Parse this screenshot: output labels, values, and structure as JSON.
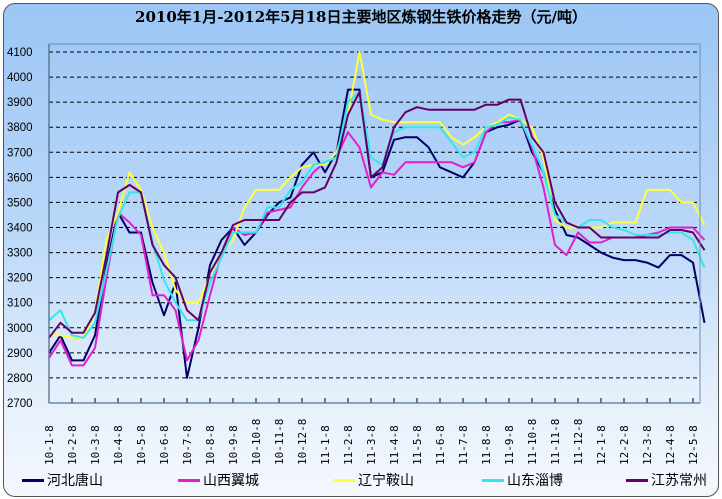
{
  "title": "2010年1月-2012年5月18日主要地区炼钢生铁价格走势（元/吨）",
  "chart_data": {
    "type": "line",
    "title": "2010年1月-2012年5月18日主要地区炼钢生铁价格走势（元/吨）",
    "xlabel": "",
    "ylabel": "",
    "ylim": [
      2700,
      4100
    ],
    "yticks": [
      2700,
      2800,
      2900,
      3000,
      3100,
      3200,
      3300,
      3400,
      3500,
      3600,
      3700,
      3800,
      3900,
      4000,
      4100
    ],
    "grid": true,
    "legend_position": "bottom",
    "categories": [
      "10-1-8",
      "10-2-8",
      "10-3-8",
      "10-4-8",
      "10-5-8",
      "10-6-8",
      "10-7-8",
      "10-8-8",
      "10-9-8",
      "10-10-8",
      "10-11-8",
      "10-12-8",
      "11-1-8",
      "11-2-8",
      "11-3-8",
      "11-4-8",
      "11-5-8",
      "11-6-8",
      "11-7-8",
      "11-8-8",
      "11-9-8",
      "11-10-8",
      "11-11-8",
      "11-12-8",
      "12-1-8",
      "12-2-8",
      "12-3-8",
      "12-4-8",
      "12-5-8"
    ],
    "x_points": [
      "10-1-8",
      "10-1-23",
      "10-2-8",
      "10-2-23",
      "10-3-8",
      "10-3-23",
      "10-4-8",
      "10-4-23",
      "10-5-8",
      "10-5-23",
      "10-6-8",
      "10-6-23",
      "10-7-8",
      "10-7-23",
      "10-8-8",
      "10-8-23",
      "10-9-8",
      "10-9-23",
      "10-10-8",
      "10-10-23",
      "10-11-8",
      "10-11-23",
      "10-12-8",
      "10-12-23",
      "11-1-8",
      "11-1-23",
      "11-2-8",
      "11-2-23",
      "11-3-8",
      "11-3-23",
      "11-4-8",
      "11-4-23",
      "11-5-8",
      "11-5-23",
      "11-6-8",
      "11-6-23",
      "11-7-8",
      "11-7-23",
      "11-8-8",
      "11-8-23",
      "11-9-8",
      "11-9-23",
      "11-10-8",
      "11-10-23",
      "11-11-8",
      "11-11-23",
      "11-12-8",
      "11-12-23",
      "12-1-8",
      "12-1-23",
      "12-2-8",
      "12-2-23",
      "12-3-8",
      "12-3-23",
      "12-4-8",
      "12-4-23",
      "12-5-8",
      "12-5-18"
    ],
    "series": [
      {
        "name": "河北唐山",
        "color": "#000066",
        "values": [
          2900,
          2970,
          2870,
          2870,
          2970,
          3250,
          3460,
          3380,
          3380,
          3180,
          3050,
          3180,
          2800,
          3000,
          3250,
          3350,
          3400,
          3330,
          3380,
          3450,
          3500,
          3520,
          3650,
          3700,
          3620,
          3700,
          3950,
          3950,
          3600,
          3620,
          3750,
          3760,
          3760,
          3720,
          3640,
          3620,
          3600,
          3660,
          3780,
          3800,
          3810,
          3830,
          3700,
          3620,
          3470,
          3370,
          3360,
          3330,
          3300,
          3280,
          3270,
          3270,
          3260,
          3240,
          3290,
          3290,
          3260,
          3020
        ]
      },
      {
        "name": "山西翼城",
        "color": "#e020d0",
        "values": [
          2880,
          2950,
          2850,
          2850,
          2920,
          3200,
          3460,
          3420,
          3370,
          3130,
          3130,
          3070,
          2870,
          2950,
          3130,
          3300,
          3400,
          3370,
          3380,
          3460,
          3470,
          3480,
          3560,
          3620,
          3660,
          3680,
          3780,
          3720,
          3560,
          3620,
          3610,
          3660,
          3660,
          3660,
          3660,
          3660,
          3640,
          3660,
          3780,
          3820,
          3820,
          3830,
          3720,
          3560,
          3330,
          3290,
          3380,
          3340,
          3340,
          3360,
          3360,
          3360,
          3370,
          3380,
          3400,
          3400,
          3400,
          3350
        ]
      },
      {
        "name": "辽宁鞍山",
        "color": "#ffff40",
        "values": [
          2970,
          2970,
          2960,
          2960,
          3060,
          3350,
          3460,
          3620,
          3550,
          3400,
          3300,
          3150,
          3100,
          3100,
          3210,
          3300,
          3350,
          3480,
          3550,
          3550,
          3550,
          3600,
          3640,
          3650,
          3650,
          3700,
          3850,
          4100,
          3850,
          3830,
          3820,
          3820,
          3820,
          3820,
          3820,
          3760,
          3730,
          3760,
          3800,
          3820,
          3850,
          3830,
          3800,
          3680,
          3430,
          3400,
          3400,
          3400,
          3400,
          3420,
          3420,
          3420,
          3550,
          3550,
          3550,
          3500,
          3500,
          3410
        ]
      },
      {
        "name": "山东淄博",
        "color": "#33e8e8",
        "values": [
          3030,
          3070,
          2970,
          2960,
          3020,
          3230,
          3440,
          3540,
          3540,
          3340,
          3190,
          3100,
          3030,
          3030,
          3180,
          3280,
          3380,
          3380,
          3380,
          3480,
          3480,
          3550,
          3580,
          3650,
          3660,
          3680,
          3900,
          3940,
          3680,
          3650,
          3780,
          3800,
          3800,
          3800,
          3800,
          3740,
          3680,
          3700,
          3800,
          3810,
          3840,
          3830,
          3730,
          3620,
          3450,
          3420,
          3400,
          3430,
          3430,
          3400,
          3390,
          3370,
          3370,
          3370,
          3380,
          3380,
          3350,
          3240
        ]
      },
      {
        "name": "江苏常州",
        "color": "#660066",
        "values": [
          2960,
          3020,
          2980,
          2980,
          3060,
          3290,
          3540,
          3570,
          3540,
          3330,
          3250,
          3200,
          3070,
          3030,
          3220,
          3300,
          3410,
          3430,
          3430,
          3430,
          3430,
          3500,
          3540,
          3540,
          3560,
          3660,
          3850,
          3940,
          3600,
          3640,
          3800,
          3860,
          3880,
          3870,
          3870,
          3870,
          3870,
          3870,
          3890,
          3890,
          3910,
          3910,
          3760,
          3700,
          3500,
          3420,
          3400,
          3400,
          3360,
          3360,
          3360,
          3360,
          3360,
          3360,
          3390,
          3390,
          3380,
          3310
        ]
      }
    ]
  },
  "legend": {
    "items": [
      {
        "label": "河北唐山",
        "color": "#000066"
      },
      {
        "label": "山西翼城",
        "color": "#e020d0"
      },
      {
        "label": "辽宁鞍山",
        "color": "#ffff40"
      },
      {
        "label": "山东淄博",
        "color": "#33e8e8"
      },
      {
        "label": "江苏常州",
        "color": "#660066"
      }
    ]
  }
}
